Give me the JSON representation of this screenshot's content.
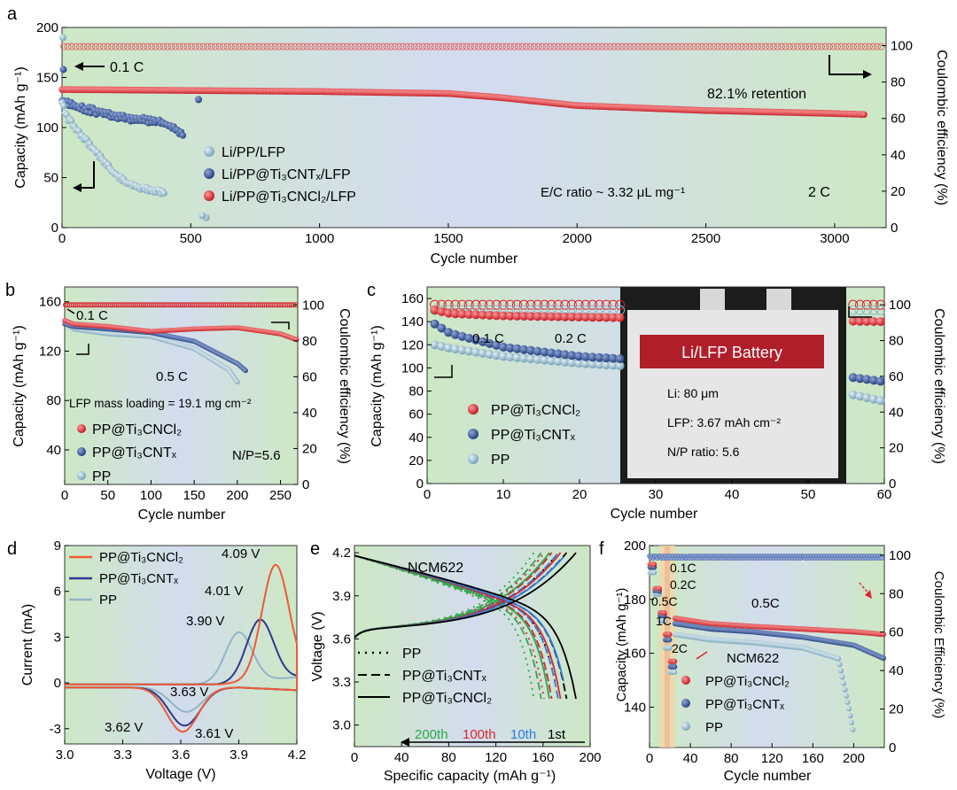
{
  "figure": {
    "labels": {
      "a": "a",
      "b": "b",
      "c": "c",
      "d": "d",
      "e": "e",
      "f": "f"
    }
  },
  "colors": {
    "red": "#d7262e",
    "navy": "#2c4a8f",
    "light": "#8fb5c8",
    "orange": "#ee5a34",
    "bgGreen": "#cde8c4",
    "bgBlue": "#cfd9ec"
  },
  "chart_data": [
    {
      "id": "a",
      "type": "scatter",
      "xlabel": "Cycle number",
      "ylabel": "Capacity (mAh g⁻¹)",
      "y2label": "Coulombic efficiency (%)",
      "xlim": [
        0,
        3200
      ],
      "ylim": [
        0,
        200
      ],
      "y2lim": [
        0,
        110
      ],
      "xticks": [
        0,
        500,
        1000,
        1500,
        2000,
        2500,
        3000
      ],
      "yticks": [
        0,
        50,
        100,
        150,
        200
      ],
      "y2ticks": [
        0,
        20,
        40,
        60,
        80,
        100
      ],
      "annotations": {
        "c01": "0.1 C",
        "retention": "82.1% retention",
        "ec": "E/C ratio ~ 3.32 μL mg⁻¹",
        "rate": "2 C"
      },
      "legend": [
        "Li/PP/LFP",
        "Li/PP@Ti₃CNTₓ/LFP",
        "Li/PP@Ti₃CNCl₂/LFP"
      ],
      "series": [
        {
          "name": "Li/PP/LFP",
          "x": [
            0,
            20,
            50,
            100,
            150,
            200,
            250,
            300,
            350,
            400
          ],
          "y": [
            125,
            110,
            100,
            85,
            70,
            55,
            45,
            40,
            37,
            35
          ]
        },
        {
          "name": "Li/PP@Ti₃CNTₓ/LFP",
          "x": [
            0,
            50,
            100,
            200,
            300,
            400,
            470
          ],
          "y": [
            127,
            122,
            118,
            112,
            108,
            104,
            93
          ]
        },
        {
          "name": "Li/PP@Ti₃CNCl₂/LFP",
          "x": [
            0,
            500,
            1000,
            1500,
            1700,
            2000,
            2500,
            3000,
            3120
          ],
          "y": [
            138,
            137,
            136,
            134,
            130,
            122,
            117,
            114,
            113
          ]
        },
        {
          "name": "CE",
          "x": [
            0,
            3120
          ],
          "y": [
            99.5,
            99.5
          ]
        }
      ]
    },
    {
      "id": "b",
      "type": "scatter",
      "xlabel": "Cycle number",
      "ylabel": "Capacity (mAh g⁻¹)",
      "y2label": "Coulombic efficiency (%)",
      "xlim": [
        0,
        270
      ],
      "ylim": [
        0,
        170
      ],
      "y2lim": [
        0,
        110
      ],
      "xticks": [
        0,
        50,
        100,
        150,
        200,
        250
      ],
      "yticks": [
        40,
        80,
        120,
        160
      ],
      "y2ticks": [
        0,
        20,
        40,
        60,
        80,
        100
      ],
      "annotations": {
        "c01": "0.1 C",
        "c05": "0.5 C",
        "loading": "LFP mass loading = 19.1 mg cm⁻²",
        "np": "N/P=5.6"
      },
      "legend": [
        "PP@Ti₃CNCl₂",
        "PP@Ti₃CNTₓ",
        "PP"
      ],
      "series": [
        {
          "name": "PP@Ti₃CNCl₂",
          "x": [
            0,
            10,
            50,
            100,
            150,
            200,
            250,
            270
          ],
          "y": [
            145,
            142,
            140,
            136,
            138,
            139,
            134,
            129
          ]
        },
        {
          "name": "PP@Ti₃CNTₓ",
          "x": [
            0,
            10,
            50,
            100,
            150,
            200,
            210
          ],
          "y": [
            142,
            140,
            138,
            135,
            128,
            110,
            104
          ]
        },
        {
          "name": "PP",
          "x": [
            0,
            10,
            50,
            100,
            150,
            190,
            200
          ],
          "y": [
            144,
            138,
            134,
            132,
            122,
            105,
            95
          ]
        }
      ]
    },
    {
      "id": "c",
      "type": "scatter",
      "xlabel": "Cycle number",
      "ylabel": "Capacity (mAh g⁻¹)",
      "y2label": "Coulombic efficiency (%)",
      "xlim": [
        0,
        60
      ],
      "ylim": [
        0,
        170
      ],
      "y2lim": [
        0,
        110
      ],
      "xticks": [
        0,
        10,
        20,
        30,
        40,
        50,
        60
      ],
      "yticks": [
        0,
        20,
        40,
        60,
        80,
        100,
        120,
        140,
        160
      ],
      "y2ticks": [
        0,
        20,
        40,
        60,
        80,
        100
      ],
      "annotations": {
        "c01": "0.1 C",
        "c02": "0.2 C",
        "photoTitle": "Li/LFP Battery",
        "li": "Li: 80 μm",
        "lfp": "LFP: 3.67 mAh cm⁻²",
        "np": "N/P ratio: 5.6"
      },
      "legend": [
        "PP@Ti₃CNCl₂",
        "PP@Ti₃CNTₓ",
        "PP"
      ],
      "series": [
        {
          "name": "PP@Ti₃CNCl₂",
          "x": [
            1,
            3,
            10,
            20,
            30,
            40,
            50,
            60
          ],
          "y": [
            150,
            147,
            145,
            144,
            143,
            142,
            141,
            140
          ]
        },
        {
          "name": "PP@Ti₃CNTₓ",
          "x": [
            1,
            3,
            10,
            20,
            30,
            40,
            50,
            60
          ],
          "y": [
            138,
            130,
            118,
            110,
            106,
            102,
            97,
            88
          ]
        },
        {
          "name": "PP",
          "x": [
            1,
            3,
            10,
            20,
            30,
            40,
            50,
            60
          ],
          "y": [
            120,
            117,
            110,
            104,
            100,
            92,
            85,
            71
          ]
        }
      ]
    },
    {
      "id": "d",
      "type": "line",
      "xlabel": "Voltage (V)",
      "ylabel": "Current (mA)",
      "xlim": [
        3.0,
        4.2
      ],
      "ylim": [
        -4,
        9
      ],
      "xticks": [
        "3.0",
        "3.3",
        "3.6",
        "3.9",
        "4.2"
      ],
      "yticks": [
        "-3",
        "0",
        "3",
        "6",
        "9"
      ],
      "peaks": {
        "p409": "4.09 V",
        "p401": "4.01 V",
        "p390": "3.90 V",
        "p363": "3.63 V",
        "p362": "3.62 V",
        "p361": "3.61 V"
      },
      "legend": [
        "PP@Ti₃CNCl₂",
        "PP@Ti₃CNTₓ",
        "PP"
      ],
      "peak_values": {
        "PP@Ti₃CNCl₂": {
          "anodic": [
            4.09,
            7.5
          ],
          "cathodic": [
            3.61,
            -2.9
          ]
        },
        "PP@Ti₃CNTₓ": {
          "anodic": [
            4.01,
            4.0
          ],
          "cathodic": [
            3.62,
            -2.5
          ]
        },
        "PP": {
          "anodic": [
            3.9,
            3.3
          ],
          "cathodic": [
            3.63,
            -1.6
          ]
        }
      }
    },
    {
      "id": "e",
      "type": "line",
      "xlabel": "Specific capacity (mAh g⁻¹)",
      "ylabel": "Voltage (V)",
      "xlim": [
        0,
        200
      ],
      "ylim": [
        2.85,
        4.25
      ],
      "xticks": [
        "0",
        "40",
        "80",
        "120",
        "160",
        "200"
      ],
      "yticks": [
        "3.0",
        "3.3",
        "3.6",
        "3.9",
        "4.2"
      ],
      "title": "NCM622",
      "legend": [
        "PP",
        "PP@Ti₃CNTₓ",
        "PP@Ti₃CNCl₂"
      ],
      "cycles": [
        "200th",
        "100th",
        "10th",
        "1st"
      ],
      "end_capacity_1st": {
        "PP@Ti₃CNCl₂": 188,
        "PP@Ti₃CNTₓ": 180,
        "PP": 173
      }
    },
    {
      "id": "f",
      "type": "scatter",
      "xlabel": "Cycle number",
      "ylabel": "Capacity (mAh g⁻¹)",
      "y2label": "Coulombic Efficiency (%)",
      "xlim": [
        0,
        230
      ],
      "ylim": [
        125,
        200
      ],
      "y2lim": [
        0,
        105
      ],
      "xticks": [
        "0",
        "40",
        "80",
        "120",
        "160",
        "200"
      ],
      "yticks": [
        "140",
        "160",
        "180",
        "200"
      ],
      "y2ticks": [
        "0",
        "20",
        "40",
        "60",
        "80",
        "100"
      ],
      "annotations": {
        "c01": "0.1C",
        "c02": "0.2C",
        "c05": "0.5C",
        "c1": "1C",
        "c2": "2C",
        "c05b": "0.5C",
        "title": "NCM622"
      },
      "legend": [
        "PP@Ti₃CNCl₂",
        "PP@Ti₃CNTₓ",
        "PP"
      ],
      "series": [
        {
          "name": "PP@Ti₃CNCl₂",
          "x": [
            25,
            60,
            100,
            150,
            200,
            230
          ],
          "y": [
            173,
            171,
            170,
            169,
            168,
            167
          ]
        },
        {
          "name": "PP@Ti₃CNTₓ",
          "x": [
            25,
            60,
            100,
            150,
            200,
            230
          ],
          "y": [
            171,
            169,
            168,
            166,
            163,
            158
          ]
        },
        {
          "name": "PP",
          "x": [
            25,
            60,
            100,
            150,
            185,
            195,
            200
          ],
          "y": [
            167,
            165,
            164,
            162,
            158,
            140,
            130
          ]
        }
      ]
    }
  ]
}
